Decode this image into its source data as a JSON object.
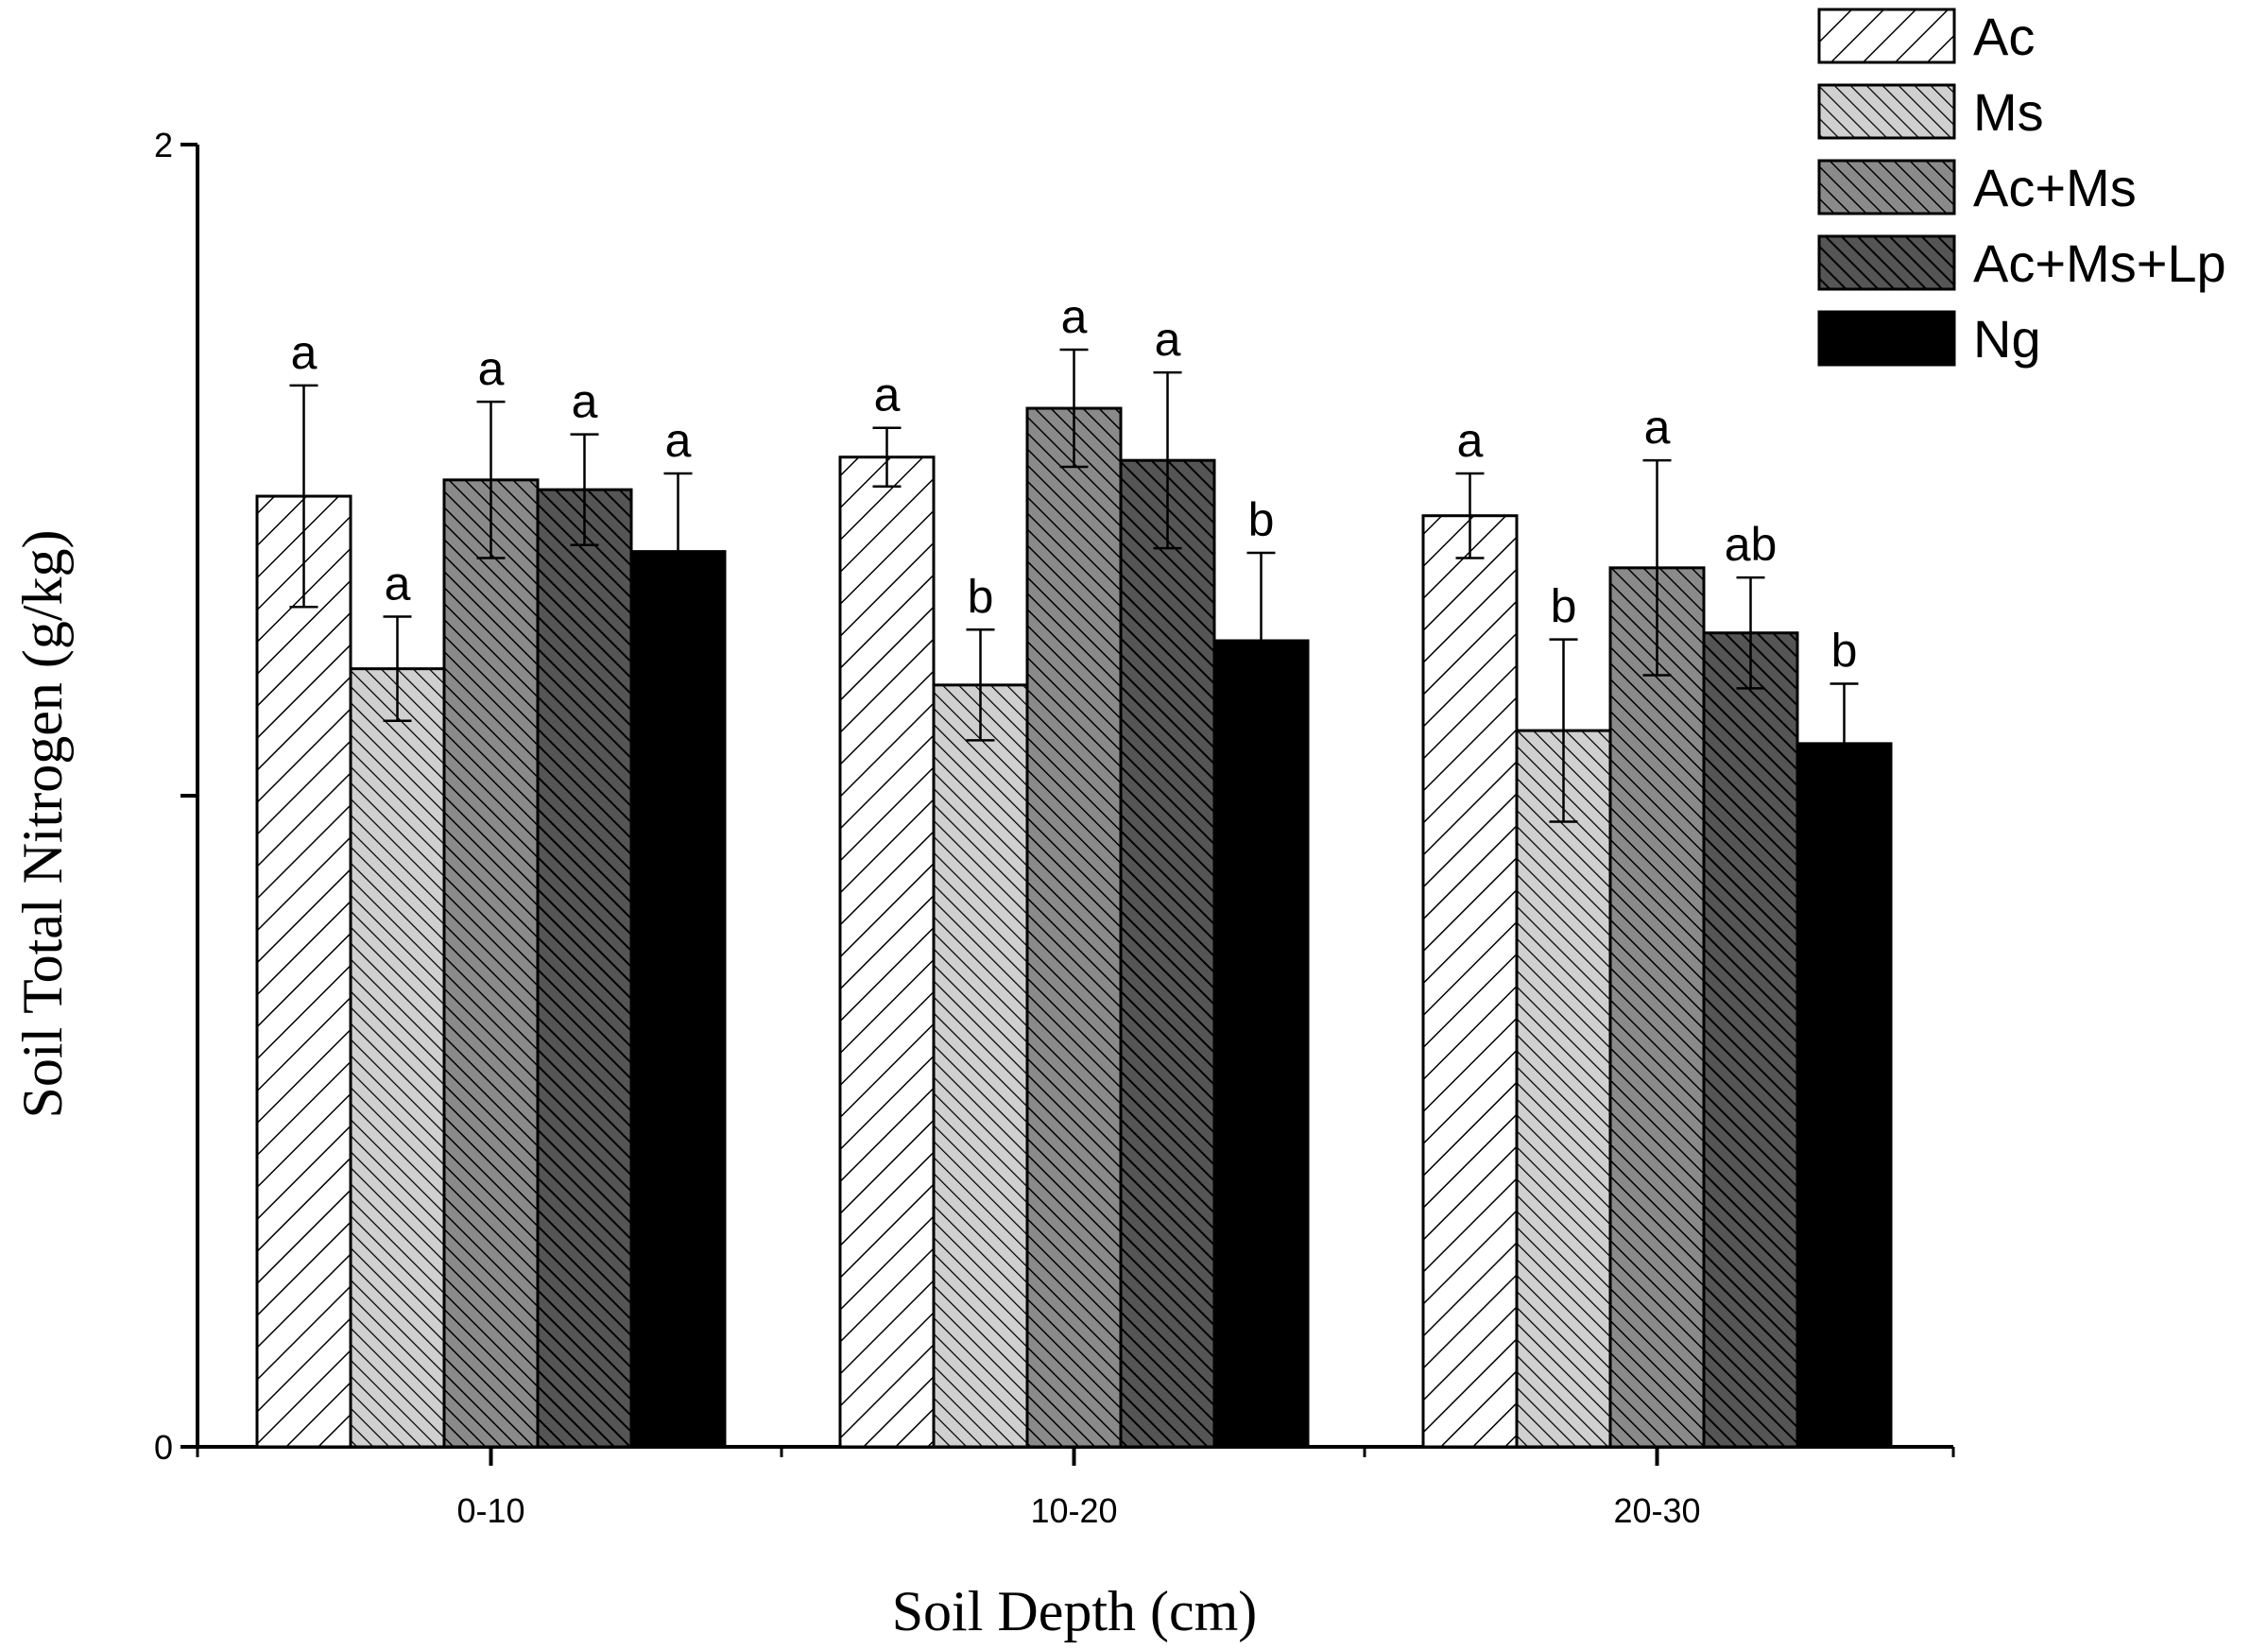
{
  "chart_data": {
    "type": "bar",
    "title": "",
    "xlabel": "Soil Depth (cm)",
    "ylabel": "Soil Total Nitrogen (g/kg)",
    "ylim": [
      0,
      2
    ],
    "yticks": [
      {
        "value": 0,
        "label": "0"
      },
      {
        "value": 1,
        "label": ""
      },
      {
        "value": 2,
        "label": "2"
      }
    ],
    "categories": [
      "0-10",
      "10-20",
      "20-30"
    ],
    "legend_position": "top-right",
    "series": [
      {
        "name": "Ac",
        "pattern": "fwd-wide",
        "values": [
          1.46,
          1.52,
          1.43
        ],
        "errors": [
          0.17,
          0.045,
          0.065
        ],
        "labels": [
          "a",
          "a",
          "a"
        ]
      },
      {
        "name": "Ms",
        "pattern": "back-light",
        "values": [
          1.195,
          1.17,
          1.1
        ],
        "errors": [
          0.08,
          0.085,
          0.14
        ],
        "labels": [
          "a",
          "b",
          "b"
        ]
      },
      {
        "name": "Ac+Ms",
        "pattern": "back-medium",
        "values": [
          1.485,
          1.595,
          1.35
        ],
        "errors": [
          0.12,
          0.09,
          0.165
        ],
        "labels": [
          "a",
          "a",
          "a"
        ]
      },
      {
        "name": "Ac+Ms+Lp",
        "pattern": "back-dark",
        "values": [
          1.47,
          1.515,
          1.25
        ],
        "errors": [
          0.085,
          0.135,
          0.085
        ],
        "labels": [
          "a",
          "a",
          "ab"
        ]
      },
      {
        "name": "Ng",
        "pattern": "solid-black",
        "values": [
          1.375,
          1.238,
          1.08
        ],
        "errors": [
          0.12,
          0.135,
          0.092
        ],
        "labels": [
          "a",
          "b",
          "b"
        ]
      }
    ]
  }
}
